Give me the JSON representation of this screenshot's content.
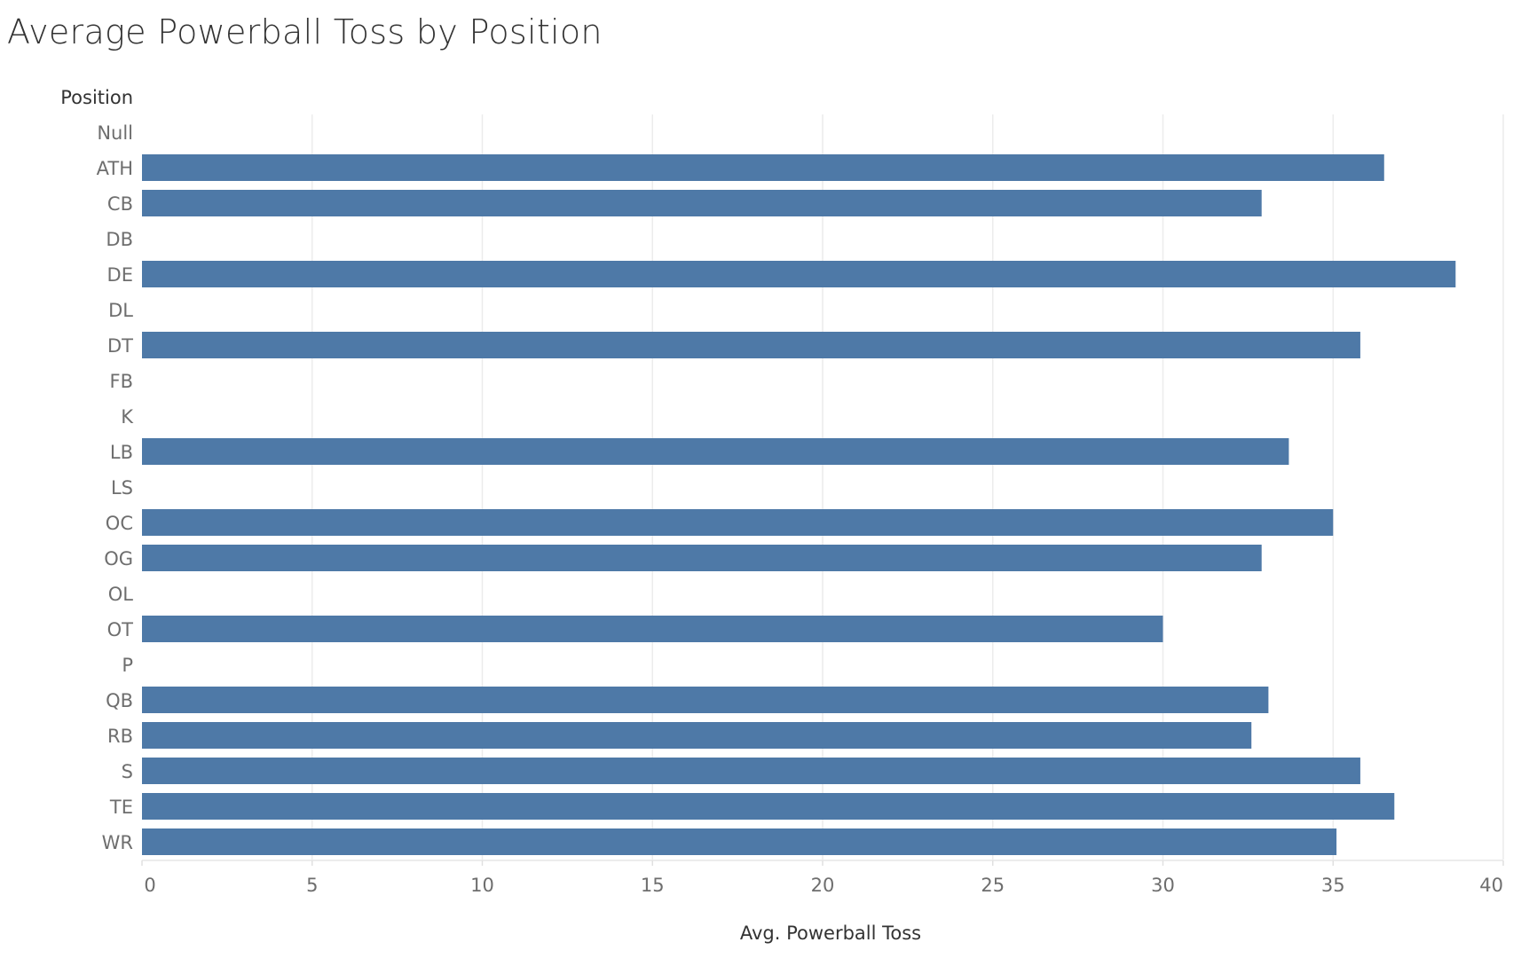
{
  "chart_data": {
    "type": "bar",
    "orientation": "horizontal",
    "title": "Average Powerball Toss by Position",
    "xlabel": "Avg. Powerball Toss",
    "ylabel": "Position",
    "xlim": [
      0,
      40
    ],
    "xticks": [
      "0",
      "5",
      "10",
      "15",
      "20",
      "25",
      "30",
      "35",
      "40"
    ],
    "categories": [
      "Null",
      "ATH",
      "CB",
      "DB",
      "DE",
      "DL",
      "DT",
      "FB",
      "K",
      "LB",
      "LS",
      "OC",
      "OG",
      "OL",
      "OT",
      "P",
      "QB",
      "RB",
      "S",
      "TE",
      "WR"
    ],
    "values": [
      null,
      36.5,
      32.9,
      null,
      38.6,
      null,
      35.8,
      null,
      null,
      33.7,
      null,
      35.0,
      32.9,
      null,
      30.0,
      null,
      33.1,
      32.6,
      35.8,
      36.8,
      35.1
    ],
    "bar_color": "#4e79a7",
    "grid": true
  }
}
